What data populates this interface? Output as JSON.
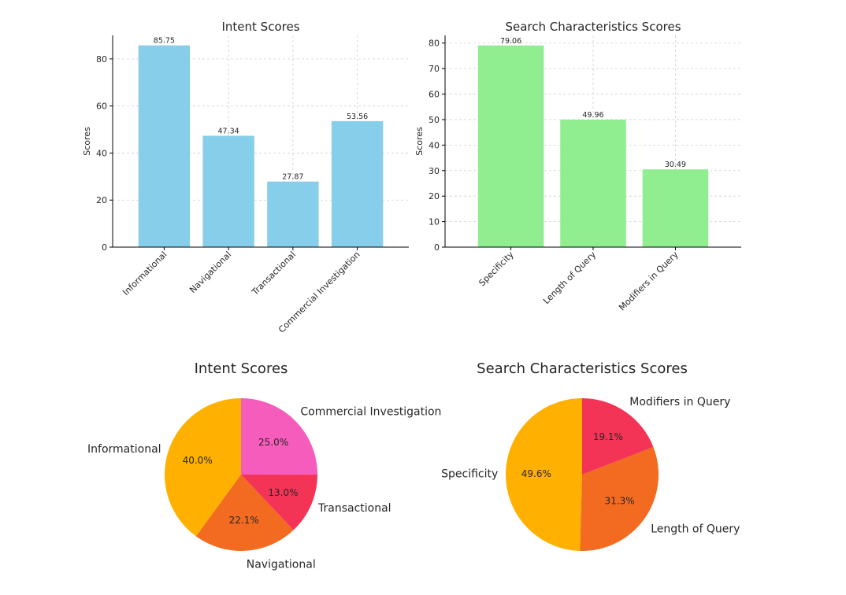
{
  "chart_data": [
    {
      "type": "bar",
      "title": "Intent Scores",
      "ylabel": "Scores",
      "categories": [
        "Informational",
        "Navigational",
        "Transactional",
        "Commercial Investigation"
      ],
      "values": [
        85.75,
        47.34,
        27.87,
        53.56
      ],
      "value_labels": [
        "85.75",
        "47.34",
        "27.87",
        "53.56"
      ],
      "ylim": [
        0,
        90
      ],
      "yticks": [
        0,
        20,
        40,
        60,
        80
      ],
      "ytick_labels": [
        "0",
        "20",
        "40",
        "60",
        "80"
      ],
      "color": "#87CEEB",
      "grid": true
    },
    {
      "type": "bar",
      "title": "Search Characteristics Scores",
      "ylabel": "Scores",
      "categories": [
        "Specificity",
        "Length of Query",
        "Modifiers in Query"
      ],
      "values": [
        79.06,
        49.96,
        30.49
      ],
      "value_labels": [
        "79.06",
        "49.96",
        "30.49"
      ],
      "ylim": [
        0,
        83
      ],
      "yticks": [
        0,
        10,
        20,
        30,
        40,
        50,
        60,
        70,
        80
      ],
      "ytick_labels": [
        "0",
        "10",
        "20",
        "30",
        "40",
        "50",
        "60",
        "70",
        "80"
      ],
      "color": "#90EE90",
      "grid": true
    },
    {
      "type": "pie",
      "title": "Intent Scores",
      "labels": [
        "Informational",
        "Navigational",
        "Transactional",
        "Commercial Investigation"
      ],
      "values": [
        85.75,
        47.34,
        27.87,
        53.56
      ],
      "pct_labels": [
        "40.0%",
        "22.1%",
        "13.0%",
        "25.0%"
      ],
      "colors": [
        "#FFB000",
        "#F26B21",
        "#F43456",
        "#F55CBB"
      ]
    },
    {
      "type": "pie",
      "title": "Search Characteristics Scores",
      "labels": [
        "Specificity",
        "Length of Query",
        "Modifiers in Query"
      ],
      "values": [
        79.06,
        49.96,
        30.49
      ],
      "pct_labels": [
        "49.6%",
        "31.3%",
        "19.1%"
      ],
      "colors": [
        "#FFB000",
        "#F26B21",
        "#F43456"
      ]
    }
  ]
}
